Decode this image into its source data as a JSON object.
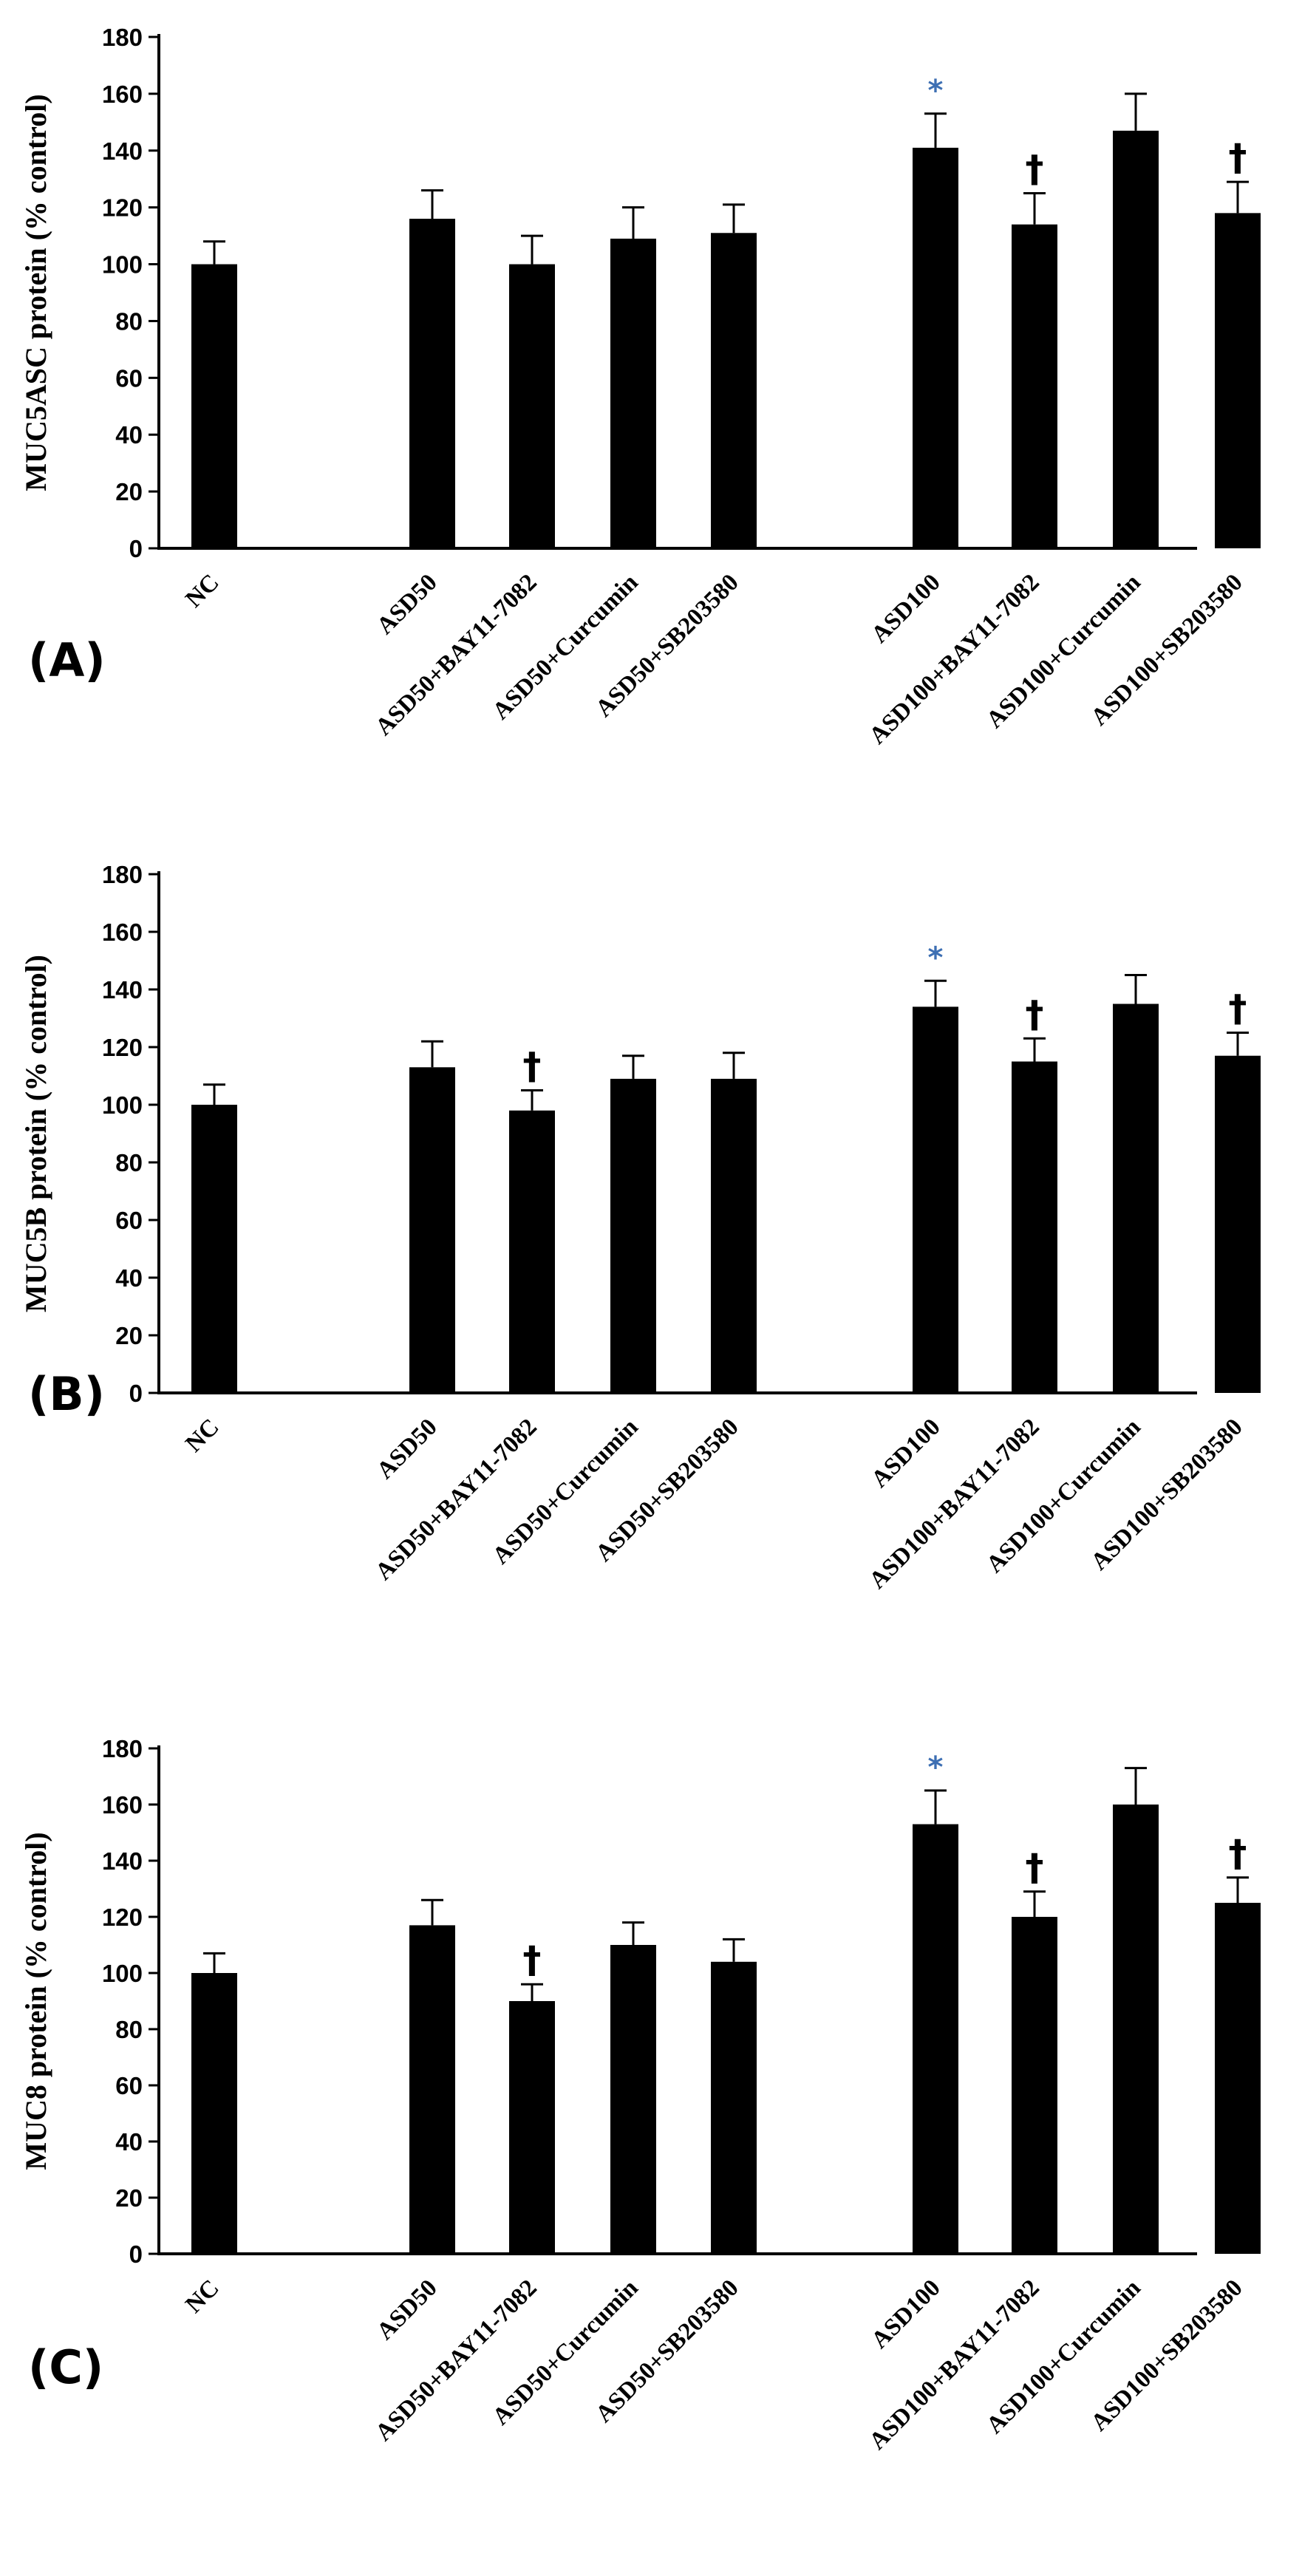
{
  "chart_data": [
    {
      "type": "bar",
      "panel_label": "(A)",
      "ylabel": "MUC5ASC protein (% control)",
      "ylim": [
        0,
        180
      ],
      "yticks": [
        0,
        20,
        40,
        60,
        80,
        100,
        120,
        140,
        160,
        180
      ],
      "categories": [
        "NC",
        "ASD50",
        "ASD50+BAY11-7082",
        "ASD50+Curcumin",
        "ASD50+SB203580",
        "ASD100",
        "ASD100+BAY11-7082",
        "ASD100+Curcumin",
        "ASD100+SB203580"
      ],
      "values": [
        100,
        116,
        100,
        109,
        111,
        141,
        114,
        147,
        118
      ],
      "errors": [
        8,
        10,
        10,
        11,
        10,
        12,
        11,
        13,
        11
      ],
      "markers": [
        "",
        "",
        "",
        "",
        "",
        "*",
        "†",
        "",
        "†"
      ]
    },
    {
      "type": "bar",
      "panel_label": "(B)",
      "ylabel": "MUC5B protein (% control)",
      "ylim": [
        0,
        180
      ],
      "yticks": [
        0,
        20,
        40,
        60,
        80,
        100,
        120,
        140,
        160,
        180
      ],
      "categories": [
        "NC",
        "ASD50",
        "ASD50+BAY11-7082",
        "ASD50+Curcumin",
        "ASD50+SB203580",
        "ASD100",
        "ASD100+BAY11-7082",
        "ASD100+Curcumin",
        "ASD100+SB203580"
      ],
      "values": [
        100,
        113,
        98,
        109,
        109,
        134,
        115,
        135,
        117
      ],
      "errors": [
        7,
        9,
        7,
        8,
        9,
        9,
        8,
        10,
        8
      ],
      "markers": [
        "",
        "",
        "†",
        "",
        "",
        "*",
        "†",
        "",
        "†"
      ]
    },
    {
      "type": "bar",
      "panel_label": "(C)",
      "ylabel": "MUC8 protein (% control)",
      "ylim": [
        0,
        180
      ],
      "yticks": [
        0,
        20,
        40,
        60,
        80,
        100,
        120,
        140,
        160,
        180
      ],
      "categories": [
        "NC",
        "ASD50",
        "ASD50+BAY11-7082",
        "ASD50+Curcumin",
        "ASD50+SB203580",
        "ASD100",
        "ASD100+BAY11-7082",
        "ASD100+Curcumin",
        "ASD100+SB203580"
      ],
      "values": [
        100,
        117,
        90,
        110,
        104,
        153,
        120,
        160,
        125
      ],
      "errors": [
        7,
        9,
        6,
        8,
        8,
        12,
        9,
        13,
        9
      ],
      "markers": [
        "",
        "",
        "†",
        "",
        "",
        "*",
        "†",
        "",
        "†"
      ]
    }
  ]
}
